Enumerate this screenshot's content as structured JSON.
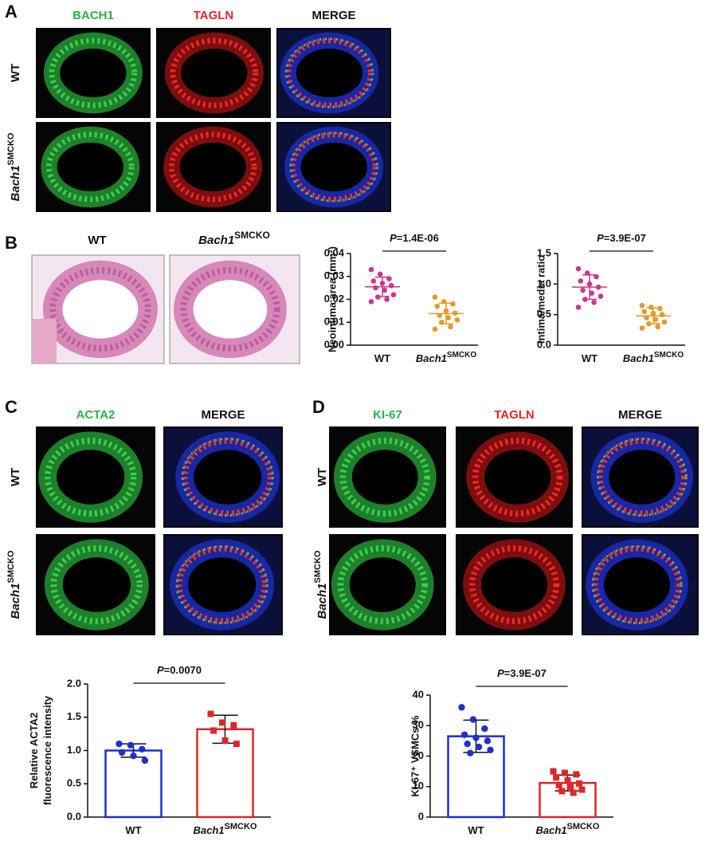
{
  "panels": {
    "A": {
      "letter": "A",
      "columns": [
        {
          "text": "BACH1",
          "color": "#27b34b"
        },
        {
          "text": "TAGLN",
          "color": "#e3262c"
        },
        {
          "text": "MERGE",
          "color": "#111111"
        }
      ],
      "rows": [
        "WT",
        {
          "base": "Bach1",
          "sup": "SMCKO"
        }
      ]
    },
    "B": {
      "letter": "B",
      "columns": [
        "WT",
        {
          "base": "Bach1",
          "sup": "SMCKO"
        }
      ]
    },
    "C": {
      "letter": "C",
      "columns": [
        {
          "text": "ACTA2",
          "color": "#27b34b"
        },
        {
          "text": "MERGE",
          "color": "#111111"
        }
      ],
      "rows": [
        "WT",
        {
          "base": "Bach1",
          "sup": "SMCKO"
        }
      ]
    },
    "D": {
      "letter": "D",
      "columns": [
        {
          "text": "KI-67",
          "color": "#27b34b"
        },
        {
          "text": "TAGLN",
          "color": "#e3262c"
        },
        {
          "text": "MERGE",
          "color": "#111111"
        }
      ],
      "rows": [
        "WT",
        {
          "base": "Bach1",
          "sup": "SMCKO"
        }
      ]
    }
  },
  "chart_data": [
    {
      "type": "scatter",
      "ylabel": [
        "Neointima area (mm²)"
      ],
      "ylim": [
        0,
        0.04
      ],
      "yticks": [
        {
          "value": 0,
          "label": "0.00"
        },
        0.01,
        0.02,
        0.03,
        0.04
      ],
      "categories": [
        "WT",
        {
          "base": "Bach1",
          "sup": "SMCKO"
        }
      ],
      "annotation": {
        "italic": "P",
        "text": "=1.4E-06"
      },
      "groups": [
        {
          "color": "#c8388f",
          "mean": 0.0255,
          "sd": 0.0042,
          "points": [
            0.033,
            0.031,
            0.029,
            0.028,
            0.027,
            0.026,
            0.025,
            0.024,
            0.022,
            0.021,
            0.02,
            0.019
          ]
        },
        {
          "color": "#e49a2a",
          "mean": 0.0138,
          "sd": 0.0045,
          "points": [
            0.021,
            0.019,
            0.018,
            0.017,
            0.015,
            0.014,
            0.013,
            0.012,
            0.011,
            0.01,
            0.008,
            0.007
          ]
        }
      ]
    },
    {
      "type": "scatter",
      "ylabel": [
        "Intima/media ratio"
      ],
      "ylim": [
        0,
        1.5
      ],
      "yticks": [
        {
          "value": 0,
          "label": "0.0"
        },
        0.5,
        {
          "value": 1,
          "label": "1.0"
        },
        1.5
      ],
      "categories": [
        "WT",
        {
          "base": "Bach1",
          "sup": "SMCKO"
        }
      ],
      "annotation": {
        "italic": "P",
        "text": "=3.9E-07"
      },
      "groups": [
        {
          "color": "#c8388f",
          "mean": 0.95,
          "sd": 0.2,
          "points": [
            1.25,
            1.18,
            1.12,
            1.05,
            1.0,
            0.95,
            0.9,
            0.85,
            0.8,
            0.75,
            0.7,
            0.62
          ]
        },
        {
          "color": "#e49a2a",
          "mean": 0.48,
          "sd": 0.13,
          "points": [
            0.65,
            0.62,
            0.6,
            0.55,
            0.52,
            0.5,
            0.45,
            0.42,
            0.38,
            0.35,
            0.3,
            0.28
          ]
        }
      ]
    },
    {
      "type": "bar",
      "ylabel": [
        "Relative ACTA2",
        "fluorescence intensity"
      ],
      "ylim": [
        0,
        2
      ],
      "yticks": [
        {
          "value": 0,
          "label": "0.0"
        },
        0.5,
        {
          "value": 1,
          "label": "1.0"
        },
        1.5,
        {
          "value": 2,
          "label": "2.0"
        }
      ],
      "categories": [
        "WT",
        {
          "base": "Bach1",
          "sup": "SMCKO"
        }
      ],
      "annotation": {
        "italic": "P",
        "text": "=0.0070"
      },
      "groups": [
        {
          "color": "#1f2fcf",
          "mean": 1.0,
          "sd": 0.1,
          "points": [
            1.1,
            1.08,
            1.02,
            0.97,
            0.92,
            0.85
          ]
        },
        {
          "color": "#e0262a",
          "mean": 1.32,
          "sd": 0.21,
          "points": [
            1.55,
            1.42,
            1.38,
            1.3,
            1.15,
            1.1
          ]
        }
      ]
    },
    {
      "type": "bar",
      "ylabel": [
        "KI-67⁺ VSMCs %"
      ],
      "ylim": [
        0,
        40
      ],
      "yticks": [
        0,
        10,
        20,
        30,
        40
      ],
      "categories": [
        "WT",
        {
          "base": "Bach1",
          "sup": "SMCKO"
        }
      ],
      "annotation": {
        "italic": "P",
        "text": "=3.9E-07"
      },
      "groups": [
        {
          "color": "#1f2fcf",
          "mean": 26.5,
          "sd": 5.3,
          "points": [
            36,
            32,
            29,
            27,
            26,
            25,
            24,
            23,
            22,
            21
          ]
        },
        {
          "color": "#e0262a",
          "mean": 11.2,
          "sd": 2.6,
          "points": [
            15,
            14.5,
            14,
            13,
            12,
            11,
            10.5,
            10,
            9,
            8.5,
            8
          ]
        }
      ]
    }
  ]
}
